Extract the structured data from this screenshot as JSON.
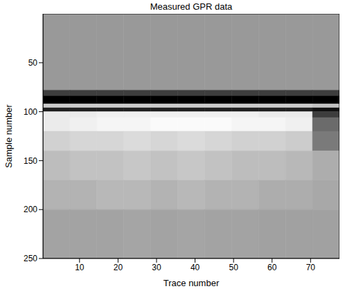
{
  "chart_data": {
    "type": "heatmap",
    "title": "Measured GPR data",
    "x_label": "Trace number",
    "y_label": "Sample number",
    "xlim": [
      0.5,
      77.5
    ],
    "ylim": [
      0,
      250
    ],
    "xticks": [
      10,
      20,
      30,
      40,
      50,
      60,
      70
    ],
    "yticks": [
      50,
      100,
      150,
      200,
      250
    ],
    "x_edges": [
      0.5,
      7.5,
      14.5,
      21.5,
      28.5,
      35.5,
      42.5,
      49.5,
      56.5,
      63.5,
      70.5,
      77.5
    ],
    "y_edges": [
      0,
      78,
      84,
      92,
      96,
      100,
      106,
      120,
      140,
      170,
      200,
      250
    ],
    "cells": [
      [
        0,
        0,
        0,
        0,
        0,
        0,
        0,
        0,
        0,
        0,
        0
      ],
      [
        -0.6,
        -0.6,
        -0.6,
        -0.6,
        -0.6,
        -0.6,
        -0.6,
        -0.6,
        -0.6,
        -0.6,
        -0.6
      ],
      [
        -1,
        -1,
        -1,
        -1,
        -1,
        -1,
        -1,
        -1,
        -1,
        -1,
        -1
      ],
      [
        0.5,
        0.5,
        0.5,
        0.5,
        0.5,
        0.5,
        0.5,
        0.5,
        0.5,
        0.5,
        0.4
      ],
      [
        -0.8,
        -0.8,
        -0.8,
        -0.8,
        -0.8,
        -0.8,
        -0.8,
        -0.8,
        -0.8,
        -0.8,
        -0.9
      ],
      [
        0.8,
        0.8,
        0.85,
        0.85,
        0.85,
        0.85,
        0.85,
        0.85,
        0.8,
        0.8,
        -0.6
      ],
      [
        0.8,
        0.85,
        0.9,
        0.9,
        0.95,
        0.95,
        0.95,
        0.9,
        0.9,
        0.85,
        -0.3
      ],
      [
        0.55,
        0.6,
        0.6,
        0.65,
        0.6,
        0.65,
        0.6,
        0.55,
        0.55,
        0.5,
        -0.2
      ],
      [
        0.35,
        0.4,
        0.4,
        0.45,
        0.4,
        0.45,
        0.4,
        0.35,
        0.35,
        0.3,
        0.2
      ],
      [
        0.25,
        0.25,
        0.3,
        0.3,
        0.25,
        0.3,
        0.25,
        0.25,
        0.2,
        0.2,
        0.15
      ],
      [
        0.1,
        0.1,
        0.1,
        0.12,
        0.1,
        0.12,
        0.1,
        0.1,
        0.08,
        0.08,
        0.08
      ]
    ]
  }
}
